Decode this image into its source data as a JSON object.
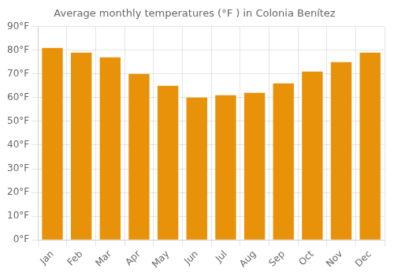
{
  "chart_data": {
    "type": "bar",
    "title": "Average monthly temperatures (°F ) in Colonia Benítez",
    "categories": [
      "Jan",
      "Feb",
      "Mar",
      "Apr",
      "May",
      "Jun",
      "Jul",
      "Aug",
      "Sep",
      "Oct",
      "Nov",
      "Dec"
    ],
    "values": [
      81,
      79,
      77,
      70,
      65,
      60,
      61,
      62,
      66,
      71,
      75,
      79
    ],
    "color": "#E8920A",
    "ylim": [
      0,
      90
    ],
    "yticks": [
      {
        "value": 0,
        "label": "0°F"
      },
      {
        "value": 10,
        "label": "10°F"
      },
      {
        "value": 20,
        "label": "20°F"
      },
      {
        "value": 30,
        "label": "30°F"
      },
      {
        "value": 40,
        "label": "40°F"
      },
      {
        "value": 50,
        "label": "50°F"
      },
      {
        "value": 60,
        "label": "60°F"
      },
      {
        "value": 70,
        "label": "70°F"
      },
      {
        "value": 80,
        "label": "80°F"
      },
      {
        "value": 90,
        "label": "90°F"
      }
    ],
    "grid": true
  }
}
